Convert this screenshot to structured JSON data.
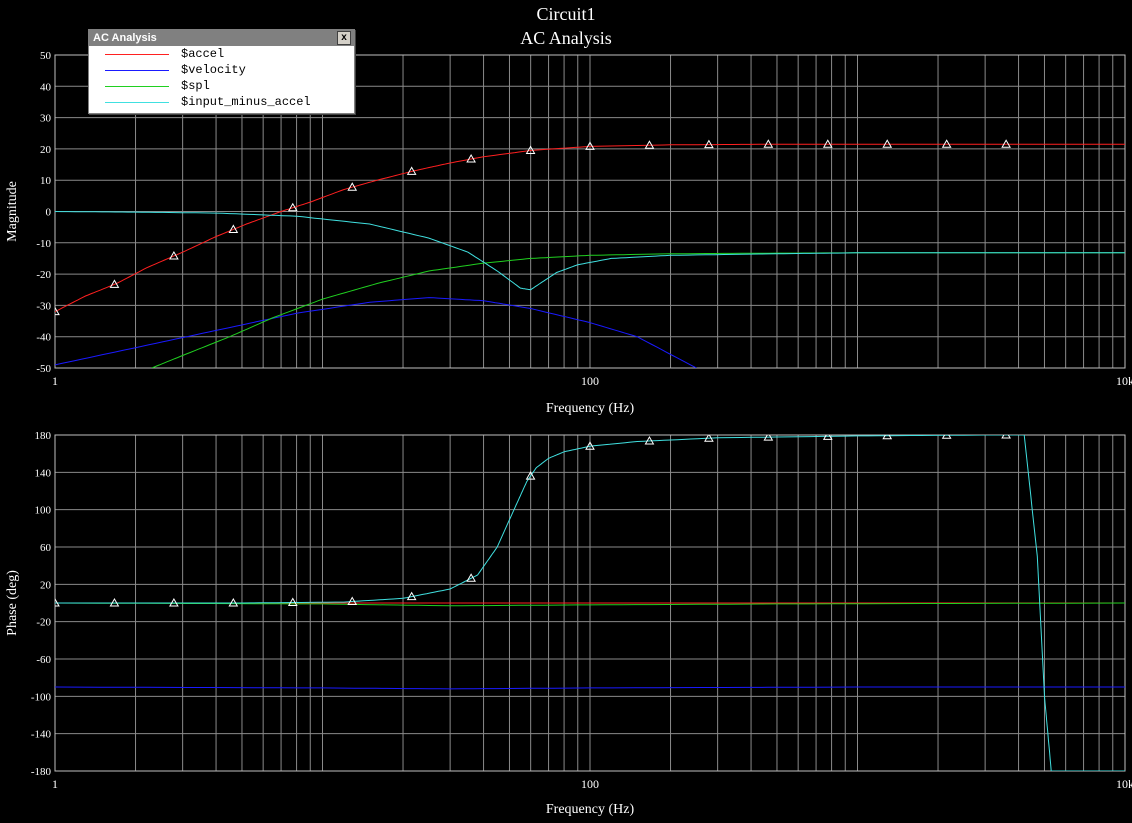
{
  "window": {
    "title": "Circuit1",
    "subtitle": "AC Analysis"
  },
  "legend": {
    "title": "AC Analysis",
    "close_label": "x",
    "items": [
      {
        "label": "$accel",
        "color": "#ff2020"
      },
      {
        "label": "$velocity",
        "color": "#1a1aff"
      },
      {
        "label": "$spl",
        "color": "#20d020"
      },
      {
        "label": "$input_minus_accel",
        "color": "#40e0e0"
      }
    ]
  },
  "chart_data": [
    {
      "type": "line",
      "title": "Circuit1 AC Analysis",
      "xlabel": "Frequency (Hz)",
      "ylabel": "Magnitude",
      "xscale": "log",
      "xlim": [
        1,
        10000
      ],
      "ylim": [
        -50,
        50
      ],
      "x_tick_labels": [
        {
          "value": 1,
          "label": "1"
        },
        {
          "value": 100,
          "label": "100"
        },
        {
          "value": 10000,
          "label": "10k"
        }
      ],
      "y_ticks": [
        50,
        40,
        30,
        20,
        10,
        0,
        -10,
        -20,
        -30,
        -40,
        -50
      ],
      "grid": true,
      "series": [
        {
          "name": "$accel",
          "color": "#ff2020",
          "marker": "triangle",
          "x": [
            1,
            1.3,
            1.7,
            2.2,
            3,
            4,
            5.2,
            7,
            9,
            12,
            16,
            22,
            30,
            40,
            60,
            100,
            200,
            500,
            1000,
            5000,
            10000
          ],
          "y": [
            -32,
            -27,
            -23,
            -18,
            -13,
            -8,
            -4,
            0,
            3,
            7,
            10,
            13,
            15.5,
            17.5,
            19.5,
            20.8,
            21.3,
            21.5,
            21.5,
            21.5,
            21.5
          ]
        },
        {
          "name": "$velocity",
          "color": "#1a1aff",
          "x": [
            1,
            2,
            4,
            8,
            15,
            25,
            40,
            60,
            100,
            150,
            250
          ],
          "y": [
            -49,
            -43.5,
            -38,
            -32.5,
            -29,
            -27.5,
            -28.5,
            -31,
            -35.5,
            -40,
            -50
          ]
        },
        {
          "name": "$spl",
          "color": "#20d020",
          "x": [
            2.3,
            3,
            4.5,
            6.5,
            10,
            16,
            25,
            40,
            60,
            100,
            200,
            500,
            1000,
            10000
          ],
          "y": [
            -50,
            -46,
            -40,
            -34,
            -28,
            -23,
            -19,
            -16.5,
            -15,
            -14,
            -13.5,
            -13.3,
            -13.2,
            -13.2
          ]
        },
        {
          "name": "$input_minus_accel",
          "color": "#40e0e0",
          "x": [
            1,
            2,
            4,
            8,
            15,
            25,
            35,
            45,
            55,
            60,
            65,
            75,
            90,
            120,
            200,
            500,
            1000,
            10000
          ],
          "y": [
            0,
            -0.2,
            -0.5,
            -1.5,
            -4,
            -8.5,
            -13,
            -19,
            -24.5,
            -25,
            -23,
            -19.5,
            -17,
            -15,
            -14,
            -13.5,
            -13.2,
            -13.2
          ]
        }
      ]
    },
    {
      "type": "line",
      "xlabel": "Frequency (Hz)",
      "ylabel": "Phase (deg)",
      "xscale": "log",
      "xlim": [
        1,
        10000
      ],
      "ylim": [
        -180,
        180
      ],
      "x_tick_labels": [
        {
          "value": 1,
          "label": "1"
        },
        {
          "value": 100,
          "label": "100"
        },
        {
          "value": 10000,
          "label": "10k"
        }
      ],
      "y_ticks": [
        180,
        140,
        100,
        60,
        20,
        -20,
        -60,
        -100,
        -140,
        -180
      ],
      "grid": true,
      "series": [
        {
          "name": "$accel",
          "color": "#ff2020",
          "x": [
            1,
            10000
          ],
          "y": [
            0,
            0
          ]
        },
        {
          "name": "$velocity",
          "color": "#1a1aff",
          "x": [
            1,
            10,
            30,
            100,
            1000,
            10000
          ],
          "y": [
            -90,
            -91,
            -92,
            -91,
            -90,
            -90
          ]
        },
        {
          "name": "$spl",
          "color": "#20d020",
          "x": [
            1,
            10,
            30,
            100,
            500,
            10000
          ],
          "y": [
            0,
            -1,
            -3,
            -2,
            -1,
            0
          ]
        },
        {
          "name": "$input_minus_accel",
          "color": "#40e0e0",
          "marker": "triangle",
          "x": [
            1,
            5,
            12,
            20,
            30,
            38,
            45,
            52,
            58,
            63,
            70,
            80,
            100,
            150,
            300,
            1000,
            3000,
            4200,
            4700,
            5000,
            5300,
            8000,
            10000
          ],
          "y": [
            0,
            0,
            1,
            5,
            15,
            30,
            60,
            100,
            130,
            145,
            155,
            162,
            168,
            173,
            177,
            179,
            180,
            180,
            50,
            -100,
            -180,
            -180,
            -180
          ]
        }
      ]
    }
  ]
}
